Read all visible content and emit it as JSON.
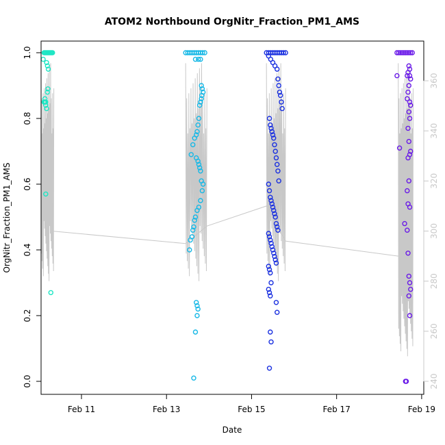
{
  "chart_data": {
    "type": "scatter",
    "title": "ATOM2 Northbound OrgNitr_Fraction_PM1_AMS",
    "xlabel": "Date",
    "ylabel": "OrgNitr_Fraction_PM1_AMS",
    "x_ticks": [
      "Feb 11",
      "Feb 13",
      "Feb 15",
      "Feb 17",
      "Feb 19"
    ],
    "x_tick_days": [
      11,
      13,
      15,
      17,
      19
    ],
    "xlim": [
      10.05,
      19.05
    ],
    "ylim": [
      0,
      1
    ],
    "y_ticks": [
      "0.0",
      "0.2",
      "0.4",
      "0.6",
      "0.8",
      "1.0"
    ],
    "y2_ticks": [
      "240",
      "260",
      "280",
      "300",
      "320",
      "340",
      "360"
    ],
    "y2lim": [
      240,
      370
    ],
    "grid": false,
    "legend": "none",
    "colors": {
      "feb10": "#1ee6c4",
      "feb13": "#16b8e6",
      "feb15": "#1a30e0",
      "feb18": "#6a1ae8",
      "overlay": "#c8c8c8",
      "right_axis": "#c8c8c8",
      "axis": "#000000"
    },
    "series": [
      {
        "color_key": "feb10",
        "x": [
          10.12,
          10.14,
          10.16,
          10.18,
          10.2,
          10.22,
          10.24,
          10.26,
          10.28,
          10.3,
          10.32,
          10.1,
          10.12,
          10.14,
          10.16,
          10.18,
          10.2,
          10.21,
          10.22,
          10.2,
          10.18,
          10.16,
          10.14,
          10.16,
          10.28
        ],
        "y": [
          1,
          1,
          1,
          1,
          1,
          1,
          1,
          1,
          1,
          1,
          1,
          0.98,
          0.85,
          0.86,
          0.84,
          0.83,
          0.88,
          0.89,
          0.95,
          0.96,
          0.97,
          0.57,
          0.85,
          0.85,
          0.27
        ]
      },
      {
        "color_key": "feb13",
        "x": [
          13.45,
          13.5,
          13.55,
          13.6,
          13.65,
          13.7,
          13.75,
          13.8,
          13.85,
          13.9,
          13.68,
          13.75,
          13.8,
          13.82,
          13.84,
          13.86,
          13.83,
          13.82,
          13.8,
          13.78,
          13.76,
          13.74,
          13.72,
          13.7,
          13.66,
          13.62,
          13.58,
          13.7,
          13.74,
          13.76,
          13.78,
          13.8,
          13.82,
          13.86,
          13.84,
          13.8,
          13.76,
          13.72,
          13.68,
          13.66,
          13.64,
          13.62,
          13.6,
          13.56,
          13.54,
          13.7,
          13.72,
          13.74,
          13.72,
          13.68,
          13.64
        ],
        "y": [
          1,
          1,
          1,
          1,
          1,
          1,
          1,
          1,
          1,
          1,
          0.98,
          0.98,
          0.98,
          0.9,
          0.89,
          0.88,
          0.87,
          0.86,
          0.85,
          0.84,
          0.8,
          0.78,
          0.76,
          0.75,
          0.74,
          0.72,
          0.69,
          0.68,
          0.67,
          0.66,
          0.65,
          0.64,
          0.61,
          0.6,
          0.58,
          0.55,
          0.53,
          0.52,
          0.5,
          0.49,
          0.47,
          0.46,
          0.44,
          0.43,
          0.4,
          0.24,
          0.23,
          0.22,
          0.2,
          0.15,
          0.01
        ],
        "y_extra": []
      },
      {
        "color_key": "feb15",
        "x": [
          15.35,
          15.4,
          15.45,
          15.5,
          15.55,
          15.6,
          15.65,
          15.7,
          15.75,
          15.8,
          15.4,
          15.45,
          15.5,
          15.55,
          15.6,
          15.62,
          15.64,
          15.66,
          15.68,
          15.7,
          15.72,
          15.42,
          15.44,
          15.46,
          15.48,
          15.5,
          15.52,
          15.54,
          15.56,
          15.58,
          15.6,
          15.62,
          15.64,
          15.4,
          15.42,
          15.44,
          15.46,
          15.48,
          15.5,
          15.52,
          15.54,
          15.56,
          15.58,
          15.6,
          15.62,
          15.4,
          15.42,
          15.44,
          15.46,
          15.48,
          15.5,
          15.52,
          15.54,
          15.56,
          15.58,
          15.4,
          15.42,
          15.44,
          15.46,
          15.4,
          15.42,
          15.44,
          15.58,
          15.6,
          15.44,
          15.46,
          15.42
        ],
        "y": [
          1,
          1,
          1,
          1,
          1,
          1,
          1,
          1,
          1,
          1,
          0.99,
          0.98,
          0.97,
          0.96,
          0.95,
          0.92,
          0.9,
          0.88,
          0.87,
          0.85,
          0.83,
          0.8,
          0.78,
          0.77,
          0.76,
          0.75,
          0.74,
          0.72,
          0.7,
          0.68,
          0.66,
          0.64,
          0.61,
          0.6,
          0.58,
          0.56,
          0.55,
          0.54,
          0.53,
          0.52,
          0.51,
          0.5,
          0.48,
          0.47,
          0.46,
          0.45,
          0.44,
          0.43,
          0.42,
          0.41,
          0.4,
          0.39,
          0.38,
          0.37,
          0.36,
          0.35,
          0.34,
          0.33,
          0.3,
          0.28,
          0.27,
          0.26,
          0.24,
          0.21,
          0.15,
          0.12,
          0.04
        ]
      },
      {
        "color_key": "feb18",
        "x": [
          18.42,
          18.46,
          18.5,
          18.54,
          18.58,
          18.62,
          18.66,
          18.7,
          18.74,
          18.78,
          18.7,
          18.72,
          18.68,
          18.66,
          18.72,
          18.74,
          18.7,
          18.68,
          18.66,
          18.72,
          18.74,
          18.7,
          18.72,
          18.68,
          18.7,
          18.74,
          18.72,
          18.68,
          18.7,
          18.66,
          18.68,
          18.72,
          18.42,
          18.48,
          18.6,
          18.66,
          18.68,
          18.7,
          18.72,
          18.74,
          18.7,
          18.72,
          18.62,
          18.64
        ],
        "y": [
          1,
          1,
          1,
          1,
          1,
          1,
          1,
          1,
          1,
          1,
          0.96,
          0.95,
          0.94,
          0.93,
          0.93,
          0.92,
          0.9,
          0.88,
          0.86,
          0.85,
          0.84,
          0.82,
          0.8,
          0.77,
          0.73,
          0.7,
          0.69,
          0.68,
          0.61,
          0.58,
          0.54,
          0.53,
          0.93,
          0.71,
          0.48,
          0.46,
          0.39,
          0.32,
          0.3,
          0.28,
          0.26,
          0.2,
          0.0,
          0.0
        ]
      }
    ],
    "overlay_line": {
      "axis": "right",
      "segments": [
        {
          "x_start": 10.05,
          "x_end": 10.35,
          "y_min": 280,
          "y_max": 367
        },
        {
          "x_start": 13.45,
          "x_end": 13.95,
          "y_min": 280,
          "y_max": 367
        },
        {
          "x_start": 15.35,
          "x_end": 15.8,
          "y_min": 280,
          "y_max": 367
        },
        {
          "x_start": 18.45,
          "x_end": 18.8,
          "y_min": 250,
          "y_max": 367
        }
      ],
      "trend": [
        [
          10.3,
          300
        ],
        [
          13.45,
          295
        ],
        [
          13.95,
          302
        ],
        [
          15.35,
          310
        ],
        [
          15.8,
          296
        ],
        [
          18.45,
          290
        ]
      ]
    }
  }
}
